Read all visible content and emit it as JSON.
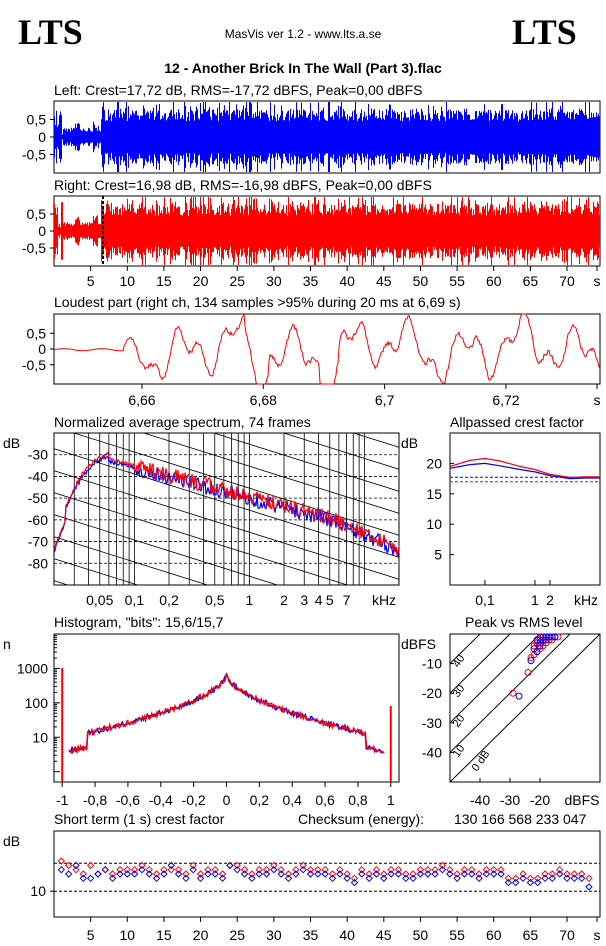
{
  "header": {
    "logo_left": "LTS",
    "logo_right": "LTS",
    "app_title": "MasVis ver 1.2 - www.lts.a.se",
    "track_title": "12 - Another Brick In The Wall (Part 3).flac",
    "checksum_label": "Checksum (energy):",
    "checksum_value": "130 166 568 233 047"
  },
  "colors": {
    "left": "#0000ff",
    "right": "#ff0000",
    "axis": "#000000"
  },
  "chart_data": [
    {
      "id": "left_wave",
      "type": "area",
      "title": "Left: Crest=17,72 dB, RMS=-17,72 dBFS, Peak=0,00 dBFS",
      "yticks": [
        "0,5",
        "0",
        "-0,5"
      ],
      "ylim": [
        -1,
        1
      ],
      "xlim": [
        0,
        74.5
      ],
      "crest_db": 17.72,
      "rms_dbfs": -17.72,
      "peak_dbfs": 0.0
    },
    {
      "id": "right_wave",
      "type": "area",
      "title": "Right: Crest=16,98 dB, RMS=-16,98 dBFS, Peak=0,00 dBFS",
      "yticks": [
        "0,5",
        "0",
        "-0,5"
      ],
      "ylim": [
        -1,
        1
      ],
      "xlim": [
        0,
        74.5
      ],
      "xticks": [
        "5",
        "10",
        "15",
        "20",
        "25",
        "30",
        "35",
        "40",
        "45",
        "50",
        "55",
        "60",
        "65",
        "70",
        "s"
      ],
      "crest_db": 16.98,
      "rms_dbfs": -16.98,
      "peak_dbfs": 0.0,
      "marker_s": 6.69
    },
    {
      "id": "loudest",
      "type": "line",
      "title": "Loudest part (right ch, 134 samples >95% during 20 ms at 6,69 s)",
      "yticks": [
        "0,5",
        "0",
        "-0,5"
      ],
      "ylim": [
        -1,
        1
      ],
      "xlim": [
        6.6455,
        6.7355
      ],
      "xticks": [
        "6,66",
        "6,68",
        "6,7",
        "6,72",
        "s"
      ]
    },
    {
      "id": "spectrum",
      "type": "line",
      "title": "Normalized average spectrum, 74 frames",
      "ylabel": "dB",
      "yticks": [
        "-30",
        "-40",
        "-50",
        "-60",
        "-70",
        "-80"
      ],
      "ylim": [
        -90,
        -20
      ],
      "xticks": [
        "0,05",
        "0,1",
        "0,2",
        "0,5",
        "1",
        "2",
        "3",
        "4",
        "5",
        "7",
        "kHz"
      ],
      "xlim_khz": [
        0.02,
        20
      ]
    },
    {
      "id": "allpassed_crest",
      "type": "line",
      "title": "Allpassed crest factor",
      "ylabel": "dB",
      "yticks": [
        "20",
        "15",
        "10",
        "5"
      ],
      "ylim": [
        0,
        25
      ],
      "xticks": [
        "0,1",
        "1",
        "2",
        "kHz"
      ],
      "series": [
        {
          "name": "",
          "color": "#ff0000",
          "points": [
            [
              0.02,
              19.5
            ],
            [
              0.05,
              20.5
            ],
            [
              0.1,
              20.8
            ],
            [
              0.2,
              20.4
            ],
            [
              0.5,
              19.5
            ],
            [
              1,
              19
            ],
            [
              2,
              18.2
            ],
            [
              5,
              17.7
            ],
            [
              10,
              17.8
            ],
            [
              20,
              17.8
            ]
          ]
        },
        {
          "name": "",
          "color": "#0000ff",
          "points": [
            [
              0.02,
              19.2
            ],
            [
              0.05,
              19.8
            ],
            [
              0.1,
              20.0
            ],
            [
              0.2,
              19.6
            ],
            [
              0.5,
              19.0
            ],
            [
              1,
              18.6
            ],
            [
              2,
              18.0
            ],
            [
              5,
              17.5
            ],
            [
              10,
              17.6
            ],
            [
              20,
              17.6
            ]
          ]
        }
      ],
      "reference_lines": [
        17.72,
        16.98
      ]
    },
    {
      "id": "histogram",
      "type": "line",
      "title": "Histogram, \"bits\": 15,6/15,7",
      "ylabel": "n",
      "yticks": [
        "1000",
        "100",
        "10"
      ],
      "xticks": [
        "-1",
        "-0,8",
        "-0,6",
        "-0,4",
        "-0,2",
        "0",
        "0,2",
        "0,4",
        "0,6",
        "0,8",
        "1"
      ],
      "xlim": [
        -1.05,
        1.05
      ]
    },
    {
      "id": "peak_vs_rms",
      "type": "scatter",
      "title": "Peak vs RMS level",
      "ylabel": "dBFS",
      "yticks": [
        "-10",
        "-20",
        "-30",
        "-40"
      ],
      "ylim": [
        -50,
        0
      ],
      "xticks": [
        "-40",
        "-30",
        "-20",
        "dBFS"
      ],
      "xlim": [
        -50,
        0
      ],
      "diagonal_labels": [
        "40",
        "30",
        "20",
        "10",
        "0 dB"
      ],
      "series": [
        {
          "name": "",
          "color": "#ff0000",
          "points": [
            [
              -29,
              -20
            ],
            [
              -24,
              -13
            ],
            [
              -22,
              -7
            ],
            [
              -21,
              -6
            ],
            [
              -20,
              -2
            ],
            [
              -19,
              -1
            ],
            [
              -18,
              -1
            ],
            [
              -17,
              -1
            ],
            [
              -16,
              -1
            ],
            [
              -15,
              -1
            ],
            [
              -17,
              -2
            ],
            [
              -19,
              -4
            ],
            [
              -20,
              -5
            ],
            [
              -18,
              -3
            ],
            [
              -16,
              -2
            ],
            [
              -22,
              -4
            ],
            [
              -20,
              -1
            ],
            [
              -14,
              -1
            ],
            [
              -21,
              -3
            ],
            [
              -23,
              -8
            ]
          ]
        },
        {
          "name": "",
          "color": "#0000ff",
          "points": [
            [
              -27,
              -21
            ],
            [
              -23,
              -9
            ],
            [
              -21,
              -6
            ],
            [
              -20,
              -3
            ],
            [
              -19,
              -2
            ],
            [
              -18,
              -1
            ],
            [
              -17,
              -1
            ],
            [
              -16,
              -1
            ],
            [
              -20,
              -4
            ],
            [
              -22,
              -5
            ],
            [
              -18,
              -2
            ],
            [
              -15,
              -1
            ],
            [
              -21,
              -2
            ],
            [
              -19,
              -1
            ]
          ]
        }
      ]
    },
    {
      "id": "short_term_crest",
      "type": "scatter",
      "title": "Short term (1 s) crest factor",
      "ylabel": "dB",
      "yticks": [
        "10"
      ],
      "ylim": [
        4,
        24
      ],
      "reference_lines": [
        16.5,
        10
      ],
      "xticks": [
        "5",
        "10",
        "15",
        "20",
        "25",
        "30",
        "35",
        "40",
        "45",
        "50",
        "55",
        "60",
        "65",
        "70",
        "s"
      ],
      "xlim": [
        0,
        74.5
      ],
      "series": [
        {
          "name": "",
          "color": "#ff0000",
          "values": [
            17,
            16,
            15,
            14,
            16,
            14,
            15,
            14,
            15,
            15,
            15,
            16,
            15,
            14,
            15,
            15,
            15,
            14,
            16,
            14,
            15,
            15,
            14,
            16,
            16,
            15,
            14,
            15,
            15,
            16,
            15,
            14,
            15,
            16,
            15,
            15,
            15,
            14,
            15,
            14,
            13,
            15,
            14,
            15,
            14,
            15,
            15,
            14,
            14,
            15,
            15,
            15,
            16,
            15,
            14,
            15,
            15,
            14,
            15,
            15,
            15,
            13,
            13,
            14,
            13,
            13,
            14,
            14,
            15,
            14,
            14,
            14,
            13
          ]
        },
        {
          "name": "",
          "color": "#0000ff",
          "values": [
            15,
            14,
            16,
            13,
            13,
            14,
            15,
            13,
            14,
            14,
            14,
            15,
            14,
            13,
            14,
            16,
            14,
            13,
            15,
            13,
            14,
            14,
            13,
            16,
            15,
            14,
            13,
            14,
            14,
            15,
            14,
            13,
            14,
            15,
            14,
            14,
            14,
            13,
            14,
            13,
            12,
            14,
            13,
            14,
            13,
            14,
            14,
            13,
            13,
            14,
            14,
            14,
            15,
            14,
            13,
            14,
            14,
            13,
            14,
            14,
            14,
            12,
            12,
            13,
            12,
            12,
            13,
            13,
            14,
            13,
            13,
            13,
            11
          ]
        }
      ]
    }
  ]
}
